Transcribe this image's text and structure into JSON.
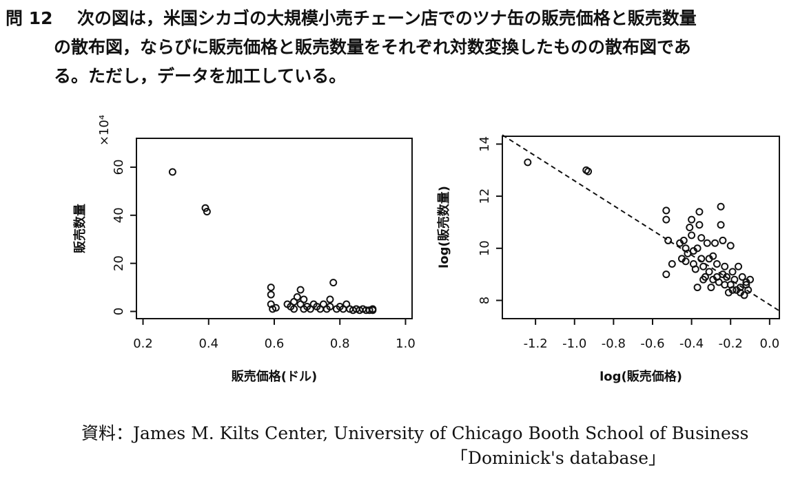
{
  "question": {
    "number": "問 12",
    "lines": [
      "次の図は，米国シカゴの大規模小売チェーン店でのツナ缶の販売価格と販売数量",
      "の散布図，ならびに販売価格と販売数量をそれぞれ対数変換したものの散布図であ",
      "る。ただし，データを加工している。"
    ]
  },
  "chart_data": [
    {
      "type": "scatter",
      "xlabel": "販売価格(ドル)",
      "ylabel": "販売数量",
      "y_multiplier": "×10⁴",
      "xlim": [
        0.18,
        1.02
      ],
      "ylim": [
        -3,
        72
      ],
      "xticks": [
        "0.2",
        "0.4",
        "0.6",
        "0.8",
        "1.0"
      ],
      "yticks": [
        "0",
        "20",
        "40",
        "60"
      ],
      "points": [
        [
          0.29,
          58.0
        ],
        [
          0.39,
          43.0
        ],
        [
          0.395,
          41.5
        ],
        [
          0.59,
          10.0
        ],
        [
          0.59,
          7.0
        ],
        [
          0.59,
          3.0
        ],
        [
          0.595,
          1.0
        ],
        [
          0.605,
          1.5
        ],
        [
          0.64,
          3.0
        ],
        [
          0.65,
          2.0
        ],
        [
          0.66,
          1.0
        ],
        [
          0.66,
          4.0
        ],
        [
          0.67,
          6.0
        ],
        [
          0.68,
          3.0
        ],
        [
          0.68,
          9.0
        ],
        [
          0.69,
          5.0
        ],
        [
          0.69,
          1.0
        ],
        [
          0.7,
          2.0
        ],
        [
          0.71,
          1.0
        ],
        [
          0.72,
          3.0
        ],
        [
          0.73,
          2.0
        ],
        [
          0.74,
          1.0
        ],
        [
          0.75,
          3.0
        ],
        [
          0.76,
          1.0
        ],
        [
          0.77,
          5.0
        ],
        [
          0.77,
          2.0
        ],
        [
          0.78,
          12.0
        ],
        [
          0.79,
          1.0
        ],
        [
          0.8,
          2.0
        ],
        [
          0.81,
          1.0
        ],
        [
          0.82,
          3.0
        ],
        [
          0.83,
          1.0
        ],
        [
          0.84,
          0.5
        ],
        [
          0.85,
          1.0
        ],
        [
          0.86,
          0.5
        ],
        [
          0.87,
          1.0
        ],
        [
          0.88,
          0.5
        ],
        [
          0.89,
          0.5
        ],
        [
          0.9,
          0.5
        ],
        [
          0.9,
          1.0
        ]
      ]
    },
    {
      "type": "scatter",
      "xlabel": "log(販売価格)",
      "ylabel": "log(販売数量)",
      "xlim": [
        -1.37,
        0.05
      ],
      "ylim": [
        7.3,
        14.3
      ],
      "xticks": [
        "-1.2",
        "-1.0",
        "-0.8",
        "-0.6",
        "-0.4",
        "-0.2",
        "0.0"
      ],
      "yticks": [
        "8",
        "10",
        "12",
        "14"
      ],
      "fit_line": {
        "x": [
          -1.37,
          0.05
        ],
        "y": [
          14.35,
          7.6
        ]
      },
      "points": [
        [
          -1.24,
          13.3
        ],
        [
          -0.94,
          13.0
        ],
        [
          -0.93,
          12.95
        ],
        [
          -0.53,
          11.45
        ],
        [
          -0.53,
          11.1
        ],
        [
          -0.52,
          10.3
        ],
        [
          -0.53,
          9.0
        ],
        [
          -0.5,
          9.4
        ],
        [
          -0.46,
          10.2
        ],
        [
          -0.44,
          10.3
        ],
        [
          -0.43,
          9.5
        ],
        [
          -0.42,
          9.8
        ],
        [
          -0.41,
          10.8
        ],
        [
          -0.4,
          11.1
        ],
        [
          -0.4,
          10.5
        ],
        [
          -0.39,
          9.9
        ],
        [
          -0.38,
          9.2
        ],
        [
          -0.37,
          10.0
        ],
        [
          -0.37,
          8.5
        ],
        [
          -0.36,
          11.4
        ],
        [
          -0.36,
          10.9
        ],
        [
          -0.35,
          10.4
        ],
        [
          -0.35,
          9.6
        ],
        [
          -0.34,
          9.3
        ],
        [
          -0.33,
          8.9
        ],
        [
          -0.32,
          10.2
        ],
        [
          -0.31,
          9.1
        ],
        [
          -0.3,
          8.5
        ],
        [
          -0.29,
          9.7
        ],
        [
          -0.29,
          8.8
        ],
        [
          -0.28,
          10.2
        ],
        [
          -0.27,
          9.4
        ],
        [
          -0.26,
          8.7
        ],
        [
          -0.25,
          11.6
        ],
        [
          -0.25,
          10.9
        ],
        [
          -0.24,
          10.3
        ],
        [
          -0.24,
          9.0
        ],
        [
          -0.23,
          9.3
        ],
        [
          -0.22,
          8.9
        ],
        [
          -0.21,
          8.3
        ],
        [
          -0.2,
          10.1
        ],
        [
          -0.2,
          8.6
        ],
        [
          -0.19,
          9.1
        ],
        [
          -0.18,
          8.8
        ],
        [
          -0.17,
          8.4
        ],
        [
          -0.16,
          9.3
        ],
        [
          -0.15,
          8.5
        ],
        [
          -0.14,
          8.9
        ],
        [
          -0.13,
          8.2
        ],
        [
          -0.12,
          8.7
        ],
        [
          -0.11,
          8.4
        ],
        [
          -0.1,
          8.8
        ],
        [
          -0.45,
          9.6
        ],
        [
          -0.43,
          10.0
        ],
        [
          -0.39,
          9.4
        ],
        [
          -0.34,
          8.8
        ],
        [
          -0.31,
          9.6
        ],
        [
          -0.27,
          8.9
        ],
        [
          -0.23,
          8.6
        ],
        [
          -0.19,
          8.4
        ],
        [
          -0.15,
          8.3
        ],
        [
          -0.12,
          8.6
        ]
      ]
    }
  ],
  "source": {
    "line1": "資料：James M. Kilts Center, University of Chicago Booth School of Business",
    "line2": "「Dominick's database」"
  }
}
